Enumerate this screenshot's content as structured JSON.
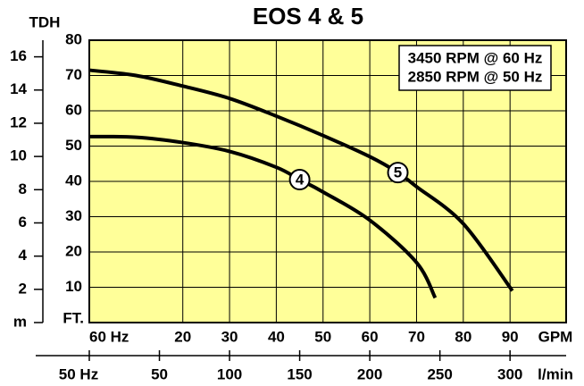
{
  "chart_data": {
    "type": "line",
    "title": "EOS 4 & 5",
    "annotation": [
      "3450 RPM @ 60 Hz",
      "2850 RPM @ 50 Hz"
    ],
    "y_label": "FT.",
    "y2_label": "m",
    "y2_title": "TDH",
    "x_label": "GPM",
    "x_origin_label": "60 Hz",
    "x2_label": "l/min",
    "x2_origin_label": "50 Hz",
    "xlim": [
      0,
      102
    ],
    "xticks": [
      20,
      30,
      40,
      50,
      60,
      70,
      80,
      90
    ],
    "ylim": [
      0,
      80
    ],
    "yticks": [
      10,
      20,
      30,
      40,
      50,
      60,
      70,
      80
    ],
    "y2lim": [
      0,
      17
    ],
    "y2ticks": [
      2,
      4,
      6,
      8,
      10,
      12,
      14,
      16
    ],
    "x2lim": [
      0,
      340
    ],
    "x2ticks": [
      50,
      100,
      150,
      200,
      250,
      300
    ],
    "grid": true,
    "background": "#ffff99",
    "series": [
      {
        "name": "4",
        "color": "#000000",
        "x": [
          0,
          10,
          20,
          30,
          40,
          45,
          50,
          60,
          70,
          74
        ],
        "values": [
          52.7,
          52.5,
          51,
          48.5,
          44,
          40.5,
          37,
          29,
          17,
          7
        ]
      },
      {
        "name": "5",
        "color": "#000000",
        "x": [
          0,
          10,
          20,
          30,
          40,
          50,
          60,
          66,
          70,
          80,
          90.5
        ],
        "values": [
          71.5,
          70,
          67,
          63.5,
          58.5,
          53,
          47,
          42.5,
          38.5,
          28,
          9
        ]
      }
    ]
  }
}
